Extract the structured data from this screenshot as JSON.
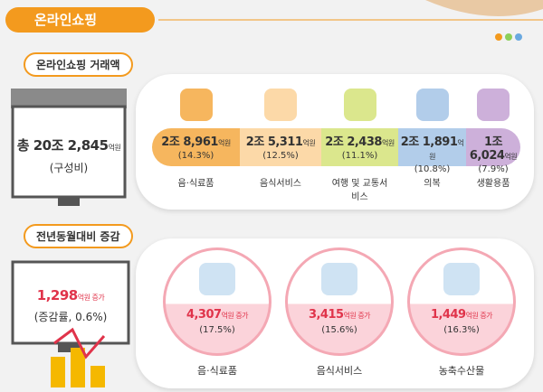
{
  "header": {
    "title": "온라인쇼핑"
  },
  "transaction": {
    "label": "온라인쇼핑 거래액",
    "total": {
      "amount": "총 20조 2,845",
      "unit": "억원",
      "note": "(구성비)"
    },
    "items": [
      {
        "amount": "2조 8,961",
        "unit": "억원",
        "share": "(14.3%)",
        "label": "음·식료품"
      },
      {
        "amount": "2조 5,311",
        "unit": "억원",
        "share": "(12.5%)",
        "label": "음식서비스"
      },
      {
        "amount": "2조 2,438",
        "unit": "억원",
        "share": "(11.1%)",
        "label": "여행 및 교통서비스"
      },
      {
        "amount": "2조 1,891",
        "unit": "억원",
        "share": "(10.8%)",
        "label": "의복"
      },
      {
        "amount": "1조 6,024",
        "unit": "억원",
        "share": "(7.9%)",
        "label": "생활용품"
      }
    ]
  },
  "change": {
    "label": "전년동월대비 증감",
    "total": {
      "amount": "1,298",
      "unit": "억원 증가",
      "note": "(증감률, 0.6%)"
    },
    "items": [
      {
        "amount": "4,307",
        "unit": "억원 증가",
        "share": "(17.5%)",
        "label": "음·식료품"
      },
      {
        "amount": "3,415",
        "unit": "억원 증가",
        "share": "(15.6%)",
        "label": "음식서비스"
      },
      {
        "amount": "1,449",
        "unit": "억원 증가",
        "share": "(16.3%)",
        "label": "농축수산물"
      }
    ]
  }
}
